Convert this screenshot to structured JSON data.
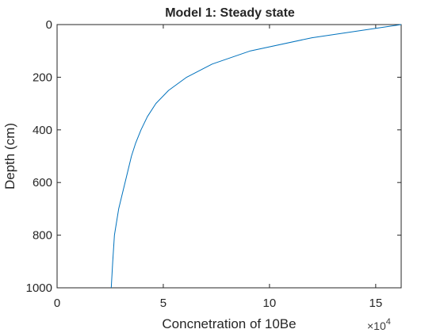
{
  "chart_data": {
    "type": "line",
    "title": "Model 1: Steady state",
    "xlabel": "Concnetration of 10Be",
    "ylabel": "Depth (cm)",
    "x_exponent_label": "×10",
    "x_exponent_power": "4",
    "x_scale": 10000,
    "xlim": [
      0,
      162000
    ],
    "ylim": [
      0,
      1000
    ],
    "y_reversed": true,
    "xticks": [
      0,
      5,
      10,
      15
    ],
    "yticks": [
      0,
      200,
      400,
      600,
      800,
      1000
    ],
    "grid": false,
    "color": "#0072bd",
    "series": [
      {
        "x": [
          162000,
          120000,
          91000,
          73000,
          61000,
          52500,
          46500,
          42500,
          39500,
          37000,
          35000,
          33500,
          32000,
          30500,
          29000,
          28000,
          27000,
          26200,
          25500
        ],
        "y": [
          0,
          50,
          100,
          150,
          200,
          250,
          300,
          350,
          400,
          450,
          500,
          550,
          600,
          650,
          700,
          750,
          800,
          900,
          1000
        ]
      }
    ]
  }
}
